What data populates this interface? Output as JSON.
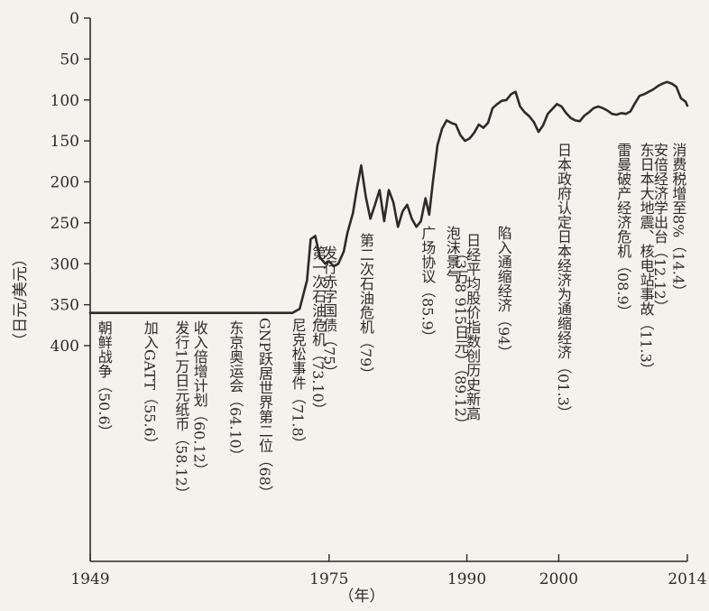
{
  "chart_data": {
    "type": "line",
    "title": "",
    "ylabel": "（日元/美元）",
    "xlabel": "（年）",
    "y_inverted": true,
    "ylim": [
      0,
      400
    ],
    "xlim": [
      1949,
      2014
    ],
    "y_ticks": [
      {
        "value": 0,
        "label": "0"
      },
      {
        "value": 50,
        "label": "50"
      },
      {
        "value": 100,
        "label": "100"
      },
      {
        "value": 150,
        "label": "150"
      },
      {
        "value": 200,
        "label": "200"
      },
      {
        "value": 250,
        "label": "250"
      },
      {
        "value": 300,
        "label": "300"
      },
      {
        "value": 350,
        "label": "350"
      },
      {
        "value": 400,
        "label": "400"
      }
    ],
    "x_ticks": [
      {
        "value": 1949,
        "label": "1949"
      },
      {
        "value": 1975,
        "label": "1975"
      },
      {
        "value": 1990,
        "label": "1990"
      },
      {
        "value": 2000,
        "label": "2000"
      },
      {
        "value": 2014,
        "label": "2014"
      }
    ],
    "grid": false,
    "legend": "none",
    "line_color": "#2b2b2b",
    "series": [
      {
        "x": [
          1949,
          1971.0,
          1971.8,
          1972.6,
          1973.0,
          1973.5,
          1974.0,
          1974.6,
          1975.0,
          1975.5,
          1976.0,
          1976.6,
          1977.0,
          1977.6,
          1978.0,
          1978.5,
          1979.0,
          1979.5,
          1980.0,
          1980.5,
          1981.0,
          1981.5,
          1982.0,
          1982.5,
          1983.0,
          1983.5,
          1984.0,
          1984.5,
          1985.0,
          1985.5,
          1985.9,
          1986.3,
          1986.8,
          1987.3,
          1987.8,
          1988.3,
          1988.8,
          1989.3,
          1989.8,
          1990.3,
          1990.8,
          1991.3,
          1991.8,
          1992.3,
          1992.8,
          1993.3,
          1993.8,
          1994.3,
          1994.8,
          1995.3,
          1995.8,
          1996.3,
          1996.8,
          1997.3,
          1997.8,
          1998.3,
          1998.8,
          1999.3,
          1999.8,
          2000.3,
          2000.8,
          2001.3,
          2001.8,
          2002.3,
          2002.8,
          2003.3,
          2003.8,
          2004.3,
          2004.8,
          2005.3,
          2005.8,
          2006.3,
          2006.8,
          2007.3,
          2007.8,
          2008.3,
          2008.8,
          2009.3,
          2009.8,
          2010.3,
          2010.8,
          2011.3,
          2011.8,
          2012.3,
          2012.8,
          2013.3,
          2013.8,
          2014.0
        ],
        "values": [
          360,
          360,
          355,
          320,
          270,
          266,
          292,
          300,
          297,
          303,
          300,
          285,
          262,
          238,
          210,
          180,
          218,
          245,
          228,
          210,
          248,
          210,
          225,
          255,
          236,
          228,
          245,
          255,
          248,
          220,
          240,
          200,
          155,
          135,
          125,
          128,
          130,
          143,
          150,
          147,
          140,
          130,
          134,
          128,
          110,
          105,
          101,
          100,
          93,
          90,
          108,
          115,
          120,
          127,
          139,
          131,
          117,
          111,
          105,
          108,
          116,
          122,
          125,
          126,
          119,
          115,
          110,
          108,
          110,
          113,
          117,
          118,
          116,
          117,
          114,
          104,
          95,
          93,
          90,
          87,
          83,
          80,
          78,
          80,
          84,
          98,
          102,
          107
        ]
      }
    ],
    "annotations": [
      {
        "text": "朝鲜战争（50.6）",
        "x": 1950.5
      },
      {
        "text": "加入GATT（55.6）",
        "x": 1955.5
      },
      {
        "text": "发行1万日元纸币（58.12）",
        "x": 1958.9
      },
      {
        "text": "收入倍增计划（60.12）",
        "x": 1960.9
      },
      {
        "text": "东京奥运会（64.10）",
        "x": 1964.8
      },
      {
        "text": "GNP跃居世界第二位（68）",
        "x": 1968.0
      },
      {
        "text": "尼克松事件（71.8）",
        "x": 1971.6
      },
      {
        "text": "第一次石油危机（73.10）",
        "x": 1973.8
      },
      {
        "text": "发行赤字国债（75）",
        "x": 1975.0
      },
      {
        "text": "第二次石油危机（79）",
        "x": 1979.0
      },
      {
        "text": "广场协议（85.9）",
        "x": 1985.7
      },
      {
        "text": "泡沫景气",
        "x": 1988.4
      },
      {
        "text": "日经平均股价指数创历史新高",
        "x": 1990.6
      },
      {
        "text": "（3万8 915日元）（89.12）",
        "x": 1989.3
      },
      {
        "text": "陷入通缩经济（94）",
        "x": 1994.0
      },
      {
        "text": "日本政府认定日本经济为通缩经济（01.3）",
        "x": 2000.5
      },
      {
        "text": "雷曼破产经济危机（08.9）",
        "x": 2007.0
      },
      {
        "text": "东日本大地震、核电站事故（11.3）",
        "x": 2009.5
      },
      {
        "text": "安倍经济学出台（12.12）",
        "x": 2011.0
      },
      {
        "text": "消费税增至8%（14.4）",
        "x": 2013.0
      }
    ]
  }
}
